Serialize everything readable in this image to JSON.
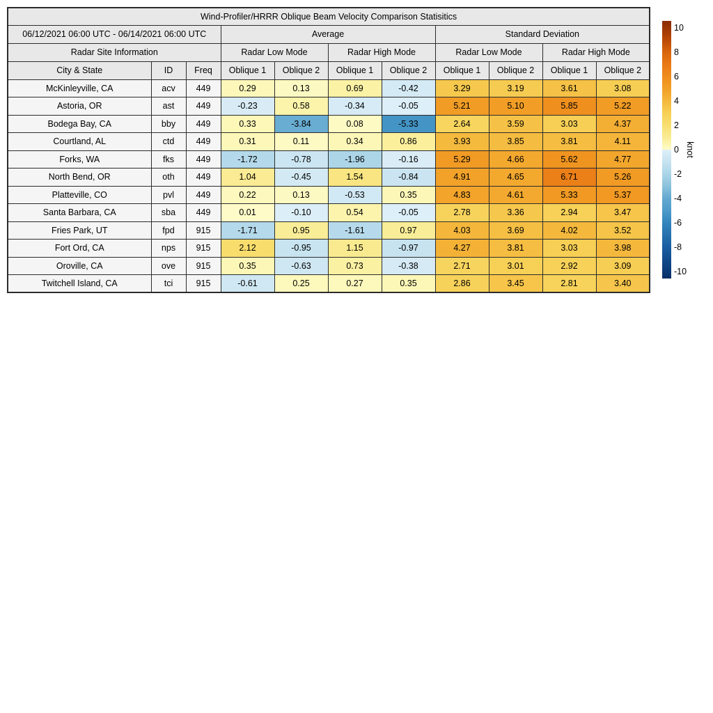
{
  "header": {
    "date_range": "06/12/2021 06:00 UTC - 06/14/2021 06:00 UTC",
    "group_average": "Average",
    "group_std": "Standard Deviation",
    "radar_site_info": "Radar Site Information",
    "mode_low": "Radar Low Mode",
    "mode_high": "Radar High Mode",
    "col_city": "City & State",
    "col_id": "ID",
    "col_freq": "Freq",
    "col_oblique1": "Oblique 1",
    "col_oblique2": "Oblique 2"
  },
  "colorbar": {
    "label": "knot",
    "ticks": [
      10,
      8,
      6,
      4,
      2,
      0,
      -2,
      -4,
      -6,
      -8,
      -10
    ],
    "vmin": -10.6,
    "vmax": 10.6
  },
  "colors": {
    "header_bg": "#e8e8e8",
    "label_cell_bg": "#f5f5f5",
    "border": "#2b2b2b",
    "anchors_negative": [
      [
        -10.6,
        "#083165"
      ],
      [
        -10,
        "#0a3a78"
      ],
      [
        -8,
        "#1b5ea2"
      ],
      [
        -6,
        "#3385bc"
      ],
      [
        -5,
        "#4d9bc9"
      ],
      [
        -4,
        "#62a9d0"
      ],
      [
        -3,
        "#8bc2dd"
      ],
      [
        -2,
        "#abd5e8"
      ],
      [
        -1,
        "#c6e3f0"
      ],
      [
        -0.5,
        "#d2e9f4"
      ],
      [
        -0.01,
        "#deeff8"
      ]
    ],
    "anchors_positive": [
      [
        0,
        "#fefbc8"
      ],
      [
        0.5,
        "#fcf5af"
      ],
      [
        1,
        "#faec95"
      ],
      [
        2,
        "#f8df70"
      ],
      [
        3,
        "#f7d056"
      ],
      [
        4,
        "#f4b83c"
      ],
      [
        5,
        "#f2a027"
      ],
      [
        6,
        "#ef8c1c"
      ],
      [
        7,
        "#e97916"
      ],
      [
        8,
        "#d9660d"
      ],
      [
        9,
        "#bc4a06"
      ],
      [
        10,
        "#9c3503"
      ],
      [
        10.6,
        "#8b2b02"
      ]
    ]
  },
  "chart_data": {
    "type": "heatmap",
    "title": "Wind-Profiler/HRRR Oblique Beam Velocity Comparison Statisitics",
    "date_range": "06/12/2021 06:00 UTC - 06/14/2021 06:00 UTC",
    "colorbar_label": "knot",
    "colorbar_ticks": [
      10,
      8,
      6,
      4,
      2,
      0,
      -2,
      -4,
      -6,
      -8,
      -10
    ],
    "colorbar_range": [
      -10,
      10
    ],
    "columns": [
      "Average / Radar Low Mode / Oblique 1",
      "Average / Radar Low Mode / Oblique 2",
      "Average / Radar High Mode / Oblique 1",
      "Average / Radar High Mode / Oblique 2",
      "Standard Deviation / Radar Low Mode / Oblique 1",
      "Standard Deviation / Radar Low Mode / Oblique 2",
      "Standard Deviation / Radar High Mode / Oblique 1",
      "Standard Deviation / Radar High Mode / Oblique 2"
    ],
    "rows": [
      {
        "city": "McKinleyville, CA",
        "id": "acv",
        "freq": "449",
        "values": [
          "0.29",
          "0.13",
          "0.69",
          "-0.42",
          "3.29",
          "3.19",
          "3.61",
          "3.08"
        ]
      },
      {
        "city": "Astoria, OR",
        "id": "ast",
        "freq": "449",
        "values": [
          "-0.23",
          "0.58",
          "-0.34",
          "-0.05",
          "5.21",
          "5.10",
          "5.85",
          "5.22"
        ]
      },
      {
        "city": "Bodega Bay, CA",
        "id": "bby",
        "freq": "449",
        "values": [
          "0.33",
          "-3.84",
          "0.08",
          "-5.33",
          "2.64",
          "3.59",
          "3.03",
          "4.37"
        ]
      },
      {
        "city": "Courtland, AL",
        "id": "ctd",
        "freq": "449",
        "values": [
          "0.31",
          "0.11",
          "0.34",
          "0.86",
          "3.93",
          "3.85",
          "3.81",
          "4.11"
        ]
      },
      {
        "city": "Forks, WA",
        "id": "fks",
        "freq": "449",
        "values": [
          "-1.72",
          "-0.78",
          "-1.96",
          "-0.16",
          "5.29",
          "4.66",
          "5.62",
          "4.77"
        ]
      },
      {
        "city": "North Bend, OR",
        "id": "oth",
        "freq": "449",
        "values": [
          "1.04",
          "-0.45",
          "1.54",
          "-0.84",
          "4.91",
          "4.65",
          "6.71",
          "5.26"
        ]
      },
      {
        "city": "Platteville, CO",
        "id": "pvl",
        "freq": "449",
        "values": [
          "0.22",
          "0.13",
          "-0.53",
          "0.35",
          "4.83",
          "4.61",
          "5.33",
          "5.37"
        ]
      },
      {
        "city": "Santa Barbara, CA",
        "id": "sba",
        "freq": "449",
        "values": [
          "0.01",
          "-0.10",
          "0.54",
          "-0.05",
          "2.78",
          "3.36",
          "2.94",
          "3.47"
        ]
      },
      {
        "city": "Fries Park, UT",
        "id": "fpd",
        "freq": "915",
        "values": [
          "-1.71",
          "0.95",
          "-1.61",
          "0.97",
          "4.03",
          "3.69",
          "4.02",
          "3.52"
        ]
      },
      {
        "city": "Fort Ord, CA",
        "id": "nps",
        "freq": "915",
        "values": [
          "2.12",
          "-0.95",
          "1.15",
          "-0.97",
          "4.27",
          "3.81",
          "3.03",
          "3.98"
        ]
      },
      {
        "city": "Oroville, CA",
        "id": "ove",
        "freq": "915",
        "values": [
          "0.35",
          "-0.63",
          "0.73",
          "-0.38",
          "2.71",
          "3.01",
          "2.92",
          "3.09"
        ]
      },
      {
        "city": "Twitchell Island, CA",
        "id": "tci",
        "freq": "915",
        "values": [
          "-0.61",
          "0.25",
          "0.27",
          "0.35",
          "2.86",
          "3.45",
          "2.81",
          "3.40"
        ]
      }
    ]
  }
}
